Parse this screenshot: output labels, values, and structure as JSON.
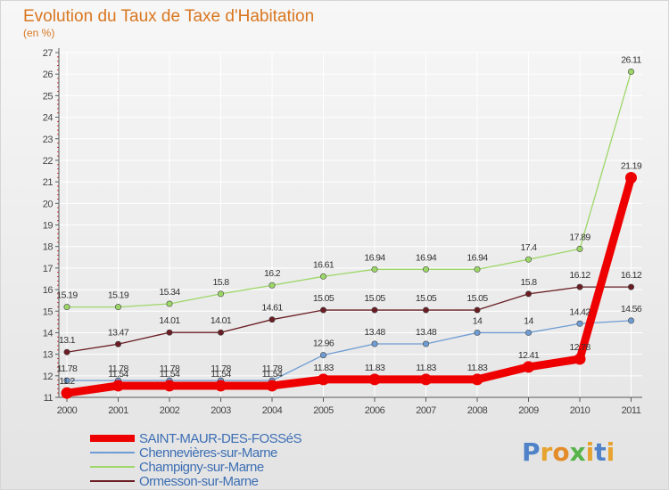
{
  "colors": {
    "title": "#d9761f",
    "axis": "#5a5a5a",
    "grid": "#ffffff",
    "saint_maur": "#ee0000",
    "chennevieres": "#6e9cd3",
    "champigny": "#9dd768",
    "ormesson": "#6a1e24"
  },
  "brand": {
    "letters": [
      "P",
      "r",
      "o",
      "x",
      "i",
      "t",
      "i"
    ]
  },
  "chart_data": {
    "type": "line",
    "title": "Evolution du Taux de Taxe d'Habitation",
    "subtitle": "(en %)",
    "x": [
      "2000",
      "2001",
      "2002",
      "2003",
      "2004",
      "2005",
      "2006",
      "2007",
      "2008",
      "2009",
      "2010",
      "2011"
    ],
    "ylim": [
      11,
      27
    ],
    "yticks": [
      "11",
      "12",
      "13",
      "14",
      "15",
      "16",
      "17",
      "18",
      "19",
      "20",
      "21",
      "22",
      "23",
      "24",
      "25",
      "26",
      "27"
    ],
    "grid": true,
    "legend_position": "bottom-left",
    "series": [
      {
        "name": "Champigny-sur-Marne",
        "color_key": "champigny",
        "values": [
          15.19,
          15.19,
          15.34,
          15.8,
          16.2,
          16.61,
          16.94,
          16.94,
          16.94,
          17.4,
          17.89,
          26.11
        ],
        "labels": [
          "15.19",
          "15.19",
          "15.34",
          "15.8",
          "16.2",
          "16.61",
          "16.94",
          "16.94",
          "16.94",
          "17.4",
          "17.89",
          "26.11"
        ]
      },
      {
        "name": "Ormesson-sur-Marne",
        "color_key": "ormesson",
        "values": [
          13.1,
          13.47,
          14.01,
          14.01,
          14.61,
          15.05,
          15.05,
          15.05,
          15.05,
          15.8,
          16.12,
          16.12
        ],
        "labels": [
          "13.1",
          "13.47",
          "14.01",
          "14.01",
          "14.61",
          "15.05",
          "15.05",
          "15.05",
          "15.05",
          "15.8",
          "16.12",
          "16.12"
        ]
      },
      {
        "name": "Chennevières-sur-Marne",
        "color_key": "chennevieres",
        "values": [
          11.78,
          11.78,
          11.78,
          11.78,
          11.78,
          12.96,
          13.48,
          13.48,
          14,
          14,
          14.42,
          14.56
        ],
        "labels": [
          "11.78",
          "11.78",
          "11.78",
          "11.78",
          "11.78",
          "12.96",
          "13.48",
          "13.48",
          "14",
          "14",
          "14.42",
          "14.56"
        ]
      },
      {
        "name": "SAINT-MAUR-DES-FOSSéS",
        "color_key": "saint_maur",
        "values": [
          11.2,
          11.54,
          11.54,
          11.54,
          11.54,
          11.83,
          11.83,
          11.83,
          11.83,
          12.41,
          12.78,
          21.19
        ],
        "labels": [
          "11.2",
          "11.54",
          "11.54",
          "11.54",
          "11.54",
          "11.83",
          "11.83",
          "11.83",
          "11.83",
          "12.41",
          "12.78",
          "21.19"
        ]
      }
    ],
    "legend": [
      {
        "name": "SAINT-MAUR-DES-FOSSéS",
        "color_key": "saint_maur"
      },
      {
        "name": "Chennevières-sur-Marne",
        "color_key": "chennevieres"
      },
      {
        "name": "Champigny-sur-Marne",
        "color_key": "champigny"
      },
      {
        "name": "Ormesson-sur-Marne",
        "color_key": "ormesson"
      }
    ]
  }
}
